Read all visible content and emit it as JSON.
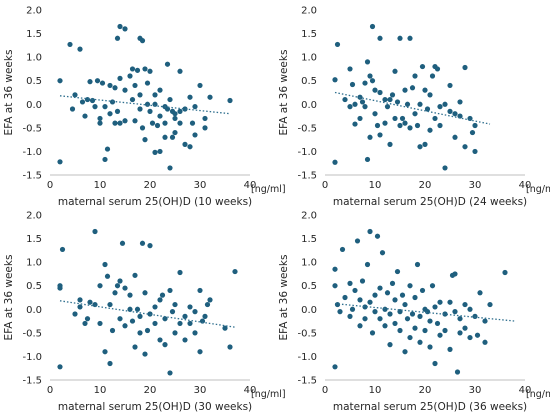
{
  "colors": {
    "point": "#1f5f7e",
    "trend": "#2f6f8e",
    "axis": "#bfbfbf",
    "text": "#262626"
  },
  "chart_data": [
    {
      "type": "scatter",
      "title": "",
      "xlabel": "maternal serum 25(OH)D (10 weeks)",
      "ylabel": "EFA at 36 weeks",
      "x_unit": "[ng/ml]",
      "xlim": [
        0,
        40
      ],
      "ylim": [
        -1.5,
        2.0
      ],
      "xticks": [
        0,
        10,
        20,
        30,
        40
      ],
      "yticks": [
        -1.5,
        -1.0,
        -0.5,
        0.0,
        0.5,
        1.0,
        1.5,
        2.0
      ],
      "xtick_labels": [
        "0",
        "10",
        "20",
        "30",
        "40"
      ],
      "ytick_labels": [
        "-1.5",
        "-1.0",
        "-0.5",
        "0.0",
        "0.5",
        "1.0",
        "1.5",
        "2.0"
      ],
      "grid": false,
      "trendline": {
        "style": "dotted",
        "x": [
          2,
          36
        ],
        "y": [
          0.18,
          -0.2
        ]
      },
      "points": [
        [
          2,
          0.5
        ],
        [
          2,
          -1.22
        ],
        [
          4,
          1.27
        ],
        [
          4.5,
          -0.1
        ],
        [
          5,
          0.2
        ],
        [
          6,
          1.17
        ],
        [
          6.5,
          0.05
        ],
        [
          7,
          -0.25
        ],
        [
          7.5,
          0.1
        ],
        [
          8,
          0.48
        ],
        [
          8.5,
          0.08
        ],
        [
          9,
          -0.05
        ],
        [
          9.5,
          0.5
        ],
        [
          10,
          -0.3
        ],
        [
          10,
          -0.4
        ],
        [
          10.5,
          0.45
        ],
        [
          11,
          -0.05
        ],
        [
          11,
          -1.17
        ],
        [
          11.5,
          -0.95
        ],
        [
          12,
          0.4
        ],
        [
          12,
          -0.2
        ],
        [
          12.5,
          0.05
        ],
        [
          13,
          0.35
        ],
        [
          13,
          -0.4
        ],
        [
          13.5,
          1.4
        ],
        [
          13.5,
          -0.15
        ],
        [
          14,
          1.65
        ],
        [
          14,
          0.55
        ],
        [
          14,
          -0.4
        ],
        [
          15,
          0.3
        ],
        [
          15,
          -0.35
        ],
        [
          15,
          1.6
        ],
        [
          16,
          0.6
        ],
        [
          16.5,
          0.75
        ],
        [
          16.5,
          0.1
        ],
        [
          17,
          0.4
        ],
        [
          17,
          -0.35
        ],
        [
          17.5,
          0.72
        ],
        [
          18,
          1.4
        ],
        [
          18,
          0.2
        ],
        [
          18,
          -0.1
        ],
        [
          18.5,
          1.35
        ],
        [
          18.5,
          -0.5
        ],
        [
          19,
          0.75
        ],
        [
          19,
          -0.75
        ],
        [
          19.5,
          0.45
        ],
        [
          19.5,
          0.0
        ],
        [
          20,
          -0.15
        ],
        [
          20,
          0.7
        ],
        [
          20.5,
          -0.4
        ],
        [
          21,
          0.2
        ],
        [
          21,
          -1.02
        ],
        [
          21,
          0.0
        ],
        [
          21.5,
          -0.45
        ],
        [
          22,
          -0.25
        ],
        [
          22,
          0.3
        ],
        [
          22,
          -1.0
        ],
        [
          23,
          -0.05
        ],
        [
          23,
          -0.4
        ],
        [
          23,
          -0.7
        ],
        [
          23.5,
          0.85
        ],
        [
          23.5,
          -0.1
        ],
        [
          24,
          -1.35
        ],
        [
          24,
          0.1
        ],
        [
          24.5,
          -0.15
        ],
        [
          24.5,
          -0.7
        ],
        [
          25,
          -0.3
        ],
        [
          25,
          -0.6
        ],
        [
          25,
          -0.2
        ],
        [
          26,
          0.7
        ],
        [
          26,
          -0.15
        ],
        [
          26,
          -0.4
        ],
        [
          27,
          -0.85
        ],
        [
          27,
          -0.1
        ],
        [
          28,
          0.15
        ],
        [
          28,
          -0.9
        ],
        [
          28.5,
          -0.4
        ],
        [
          29,
          -0.05
        ],
        [
          29,
          -0.65
        ],
        [
          30,
          0.4
        ],
        [
          31,
          -0.5
        ],
        [
          31,
          -0.3
        ],
        [
          32,
          0.15
        ],
        [
          36,
          0.08
        ]
      ]
    },
    {
      "type": "scatter",
      "title": "",
      "xlabel": "maternal serum 25(OH)D (24 weeks)",
      "ylabel": "EFA at 36 weeks",
      "x_unit": "[ng/ml]",
      "xlim": [
        0,
        40
      ],
      "ylim": [
        -1.5,
        2.0
      ],
      "xticks": [
        0,
        10,
        20,
        30,
        40
      ],
      "yticks": [
        -1.5,
        -1.0,
        -0.5,
        0.0,
        0.5,
        1.0,
        1.5,
        2.0
      ],
      "xtick_labels": [
        "0",
        "10",
        "20",
        "30",
        "40"
      ],
      "ytick_labels": [
        "-1.5",
        "-1.0",
        "-0.5",
        "0.0",
        "0.5",
        "1.0",
        "1.5",
        "2.0"
      ],
      "grid": false,
      "trendline": {
        "style": "dotted",
        "x": [
          2,
          33
        ],
        "y": [
          0.25,
          -0.42
        ]
      },
      "points": [
        [
          2,
          0.52
        ],
        [
          2,
          -1.23
        ],
        [
          2.5,
          1.27
        ],
        [
          4,
          0.1
        ],
        [
          5,
          -0.05
        ],
        [
          5,
          0.75
        ],
        [
          5.5,
          0.42
        ],
        [
          6,
          -0.42
        ],
        [
          6,
          0.0
        ],
        [
          7,
          -0.3
        ],
        [
          7,
          0.15
        ],
        [
          7.5,
          0.05
        ],
        [
          8,
          -0.05
        ],
        [
          8,
          0.45
        ],
        [
          8.5,
          0.9
        ],
        [
          8.5,
          -1.17
        ],
        [
          9,
          0.6
        ],
        [
          9,
          -0.7
        ],
        [
          9.5,
          1.65
        ],
        [
          9.5,
          0.5
        ],
        [
          10,
          0.3
        ],
        [
          10,
          -0.2
        ],
        [
          10.5,
          -0.45
        ],
        [
          11,
          0.25
        ],
        [
          11,
          -0.65
        ],
        [
          11,
          1.4
        ],
        [
          12,
          0.1
        ],
        [
          12,
          -0.4
        ],
        [
          12.5,
          -0.05
        ],
        [
          13,
          0.1
        ],
        [
          13,
          -0.85
        ],
        [
          13.5,
          0.2
        ],
        [
          14,
          0.7
        ],
        [
          14,
          -0.3
        ],
        [
          14.5,
          0.05
        ],
        [
          15,
          1.4
        ],
        [
          15,
          -0.45
        ],
        [
          15.5,
          -0.3
        ],
        [
          16,
          0.3
        ],
        [
          16,
          -0.4
        ],
        [
          16.5,
          0.0
        ],
        [
          17,
          1.4
        ],
        [
          17,
          -0.5
        ],
        [
          17.5,
          0.35
        ],
        [
          18,
          0.6
        ],
        [
          18,
          -0.2
        ],
        [
          18.5,
          -0.45
        ],
        [
          19,
          0.0
        ],
        [
          19,
          -0.9
        ],
        [
          19.5,
          0.8
        ],
        [
          20,
          0.3
        ],
        [
          20,
          -0.85
        ],
        [
          20.5,
          -0.1
        ],
        [
          21,
          0.2
        ],
        [
          21,
          -0.55
        ],
        [
          21.5,
          0.6
        ],
        [
          22,
          0.8
        ],
        [
          22,
          -0.3
        ],
        [
          22.5,
          0.75
        ],
        [
          23,
          -0.05
        ],
        [
          23,
          -0.45
        ],
        [
          24,
          0.0
        ],
        [
          24,
          -1.35
        ],
        [
          25,
          -0.15
        ],
        [
          25,
          0.4
        ],
        [
          26,
          -0.7
        ],
        [
          26,
          -0.2
        ],
        [
          27,
          0.05
        ],
        [
          27,
          -0.25
        ],
        [
          28,
          -0.9
        ],
        [
          28,
          0.78
        ],
        [
          29,
          -0.3
        ],
        [
          29.5,
          -0.6
        ],
        [
          30,
          -0.45
        ],
        [
          30,
          -1.0
        ]
      ]
    },
    {
      "type": "scatter",
      "title": "",
      "xlabel": "maternal serum 25(OH)D (30 weeks)",
      "ylabel": "EFA at 36 weeks",
      "x_unit": "[ng/ml]",
      "xlim": [
        0,
        40
      ],
      "ylim": [
        -1.5,
        2.0
      ],
      "xticks": [
        0,
        10,
        20,
        30,
        40
      ],
      "yticks": [
        -1.5,
        -1.0,
        -0.5,
        0.0,
        0.5,
        1.0,
        1.5,
        2.0
      ],
      "xtick_labels": [
        "0",
        "10",
        "20",
        "30",
        "40"
      ],
      "ytick_labels": [
        "-1.5",
        "-1.0",
        "-0.5",
        "0.0",
        "0.5",
        "1.0",
        "1.5",
        "2.0"
      ],
      "grid": false,
      "trendline": {
        "style": "dotted",
        "x": [
          2,
          37
        ],
        "y": [
          0.18,
          -0.38
        ]
      },
      "points": [
        [
          2,
          0.5
        ],
        [
          2,
          0.45
        ],
        [
          2,
          -1.22
        ],
        [
          2.5,
          1.27
        ],
        [
          5,
          -0.1
        ],
        [
          6,
          0.2
        ],
        [
          6,
          0.05
        ],
        [
          7,
          -0.3
        ],
        [
          7.5,
          -0.2
        ],
        [
          8,
          0.15
        ],
        [
          9,
          1.65
        ],
        [
          9,
          0.1
        ],
        [
          10,
          0.5
        ],
        [
          10,
          -0.3
        ],
        [
          11,
          0.95
        ],
        [
          11,
          -0.9
        ],
        [
          11.5,
          0.7
        ],
        [
          12,
          0.1
        ],
        [
          12,
          -1.15
        ],
        [
          12.5,
          -0.45
        ],
        [
          13,
          0.35
        ],
        [
          13.5,
          0.5
        ],
        [
          14,
          0.6
        ],
        [
          14,
          -0.2
        ],
        [
          14.5,
          1.4
        ],
        [
          15,
          -0.35
        ],
        [
          15,
          0.45
        ],
        [
          16,
          0.3
        ],
        [
          16,
          0.0
        ],
        [
          16.5,
          -0.25
        ],
        [
          17,
          -0.8
        ],
        [
          17,
          0.72
        ],
        [
          17.5,
          0.0
        ],
        [
          18,
          -0.15
        ],
        [
          18,
          -0.5
        ],
        [
          18.5,
          1.4
        ],
        [
          19,
          0.35
        ],
        [
          19,
          -0.95
        ],
        [
          19.5,
          -0.45
        ],
        [
          20,
          1.35
        ],
        [
          20,
          -0.1
        ],
        [
          21,
          0.05
        ],
        [
          21,
          -0.3
        ],
        [
          22,
          0.2
        ],
        [
          22,
          -0.65
        ],
        [
          22.5,
          0.3
        ],
        [
          23,
          -0.2
        ],
        [
          23,
          -0.75
        ],
        [
          24,
          0.4
        ],
        [
          24,
          -1.35
        ],
        [
          24.5,
          -0.05
        ],
        [
          25,
          0.1
        ],
        [
          25,
          -0.5
        ],
        [
          26,
          0.78
        ],
        [
          26,
          -0.3
        ],
        [
          27,
          -0.15
        ],
        [
          27,
          -0.65
        ],
        [
          28,
          0.05
        ],
        [
          28,
          -0.3
        ],
        [
          29,
          -0.5
        ],
        [
          29,
          -0.05
        ],
        [
          30,
          0.4
        ],
        [
          30,
          -0.9
        ],
        [
          30.5,
          -0.25
        ],
        [
          31,
          -0.15
        ],
        [
          31.5,
          0.1
        ],
        [
          32,
          0.2
        ],
        [
          35,
          -0.4
        ],
        [
          36,
          -0.8
        ],
        [
          37,
          0.8
        ]
      ]
    },
    {
      "type": "scatter",
      "title": "",
      "xlabel": "maternal serum 25(OH)D (36 weeks)",
      "ylabel": "EFA at 36 weeks",
      "x_unit": "[ng/ml]",
      "xlim": [
        0,
        40
      ],
      "ylim": [
        -1.5,
        2.0
      ],
      "xticks": [
        0,
        10,
        20,
        30,
        40
      ],
      "yticks": [
        -1.5,
        -1.0,
        -0.5,
        0.0,
        0.5,
        1.0,
        1.5,
        2.0
      ],
      "xtick_labels": [
        "0",
        "10",
        "20",
        "30",
        "40"
      ],
      "ytick_labels": [
        "-1.5",
        "-1.0",
        "-0.5",
        "0.0",
        "0.5",
        "1.0",
        "1.5",
        "2.0"
      ],
      "grid": false,
      "trendline": {
        "style": "dotted",
        "x": [
          2,
          38
        ],
        "y": [
          0.12,
          -0.25
        ]
      },
      "points": [
        [
          2,
          0.85
        ],
        [
          2,
          0.5
        ],
        [
          2,
          -1.22
        ],
        [
          2.5,
          0.1
        ],
        [
          3,
          -0.05
        ],
        [
          3.5,
          1.27
        ],
        [
          4,
          0.25
        ],
        [
          5,
          -0.15
        ],
        [
          5,
          0.55
        ],
        [
          5.5,
          0.0
        ],
        [
          6,
          0.4
        ],
        [
          6.5,
          1.45
        ],
        [
          7,
          0.2
        ],
        [
          7,
          -0.35
        ],
        [
          7.5,
          0.6
        ],
        [
          8,
          0.05
        ],
        [
          8,
          -0.2
        ],
        [
          8.5,
          0.95
        ],
        [
          9,
          1.65
        ],
        [
          9,
          0.15
        ],
        [
          9.5,
          -0.5
        ],
        [
          10,
          0.3
        ],
        [
          10,
          -0.05
        ],
        [
          10.5,
          1.55
        ],
        [
          11,
          0.45
        ],
        [
          11,
          -0.2
        ],
        [
          11.5,
          1.2
        ],
        [
          12,
          0.0
        ],
        [
          12,
          -0.35
        ],
        [
          12.5,
          0.35
        ],
        [
          13,
          -0.1
        ],
        [
          13,
          -0.75
        ],
        [
          13.5,
          0.55
        ],
        [
          14,
          0.2
        ],
        [
          14,
          -0.3
        ],
        [
          14.5,
          0.8
        ],
        [
          15,
          -0.05
        ],
        [
          15,
          -0.45
        ],
        [
          15.5,
          0.3
        ],
        [
          16,
          0.1
        ],
        [
          16,
          -0.9
        ],
        [
          16.5,
          -0.2
        ],
        [
          17,
          0.5
        ],
        [
          17,
          -0.6
        ],
        [
          17.5,
          -0.1
        ],
        [
          18,
          0.25
        ],
        [
          18,
          -0.4
        ],
        [
          18.5,
          0.95
        ],
        [
          19,
          -0.15
        ],
        [
          19,
          -0.7
        ],
        [
          19.5,
          0.4
        ],
        [
          20,
          -0.45
        ],
        [
          20,
          0.0
        ],
        [
          20.5,
          -0.05
        ],
        [
          21,
          -0.25
        ],
        [
          21,
          -0.8
        ],
        [
          21.5,
          0.5
        ],
        [
          22,
          -1.15
        ],
        [
          22,
          0.05
        ],
        [
          22.5,
          -0.3
        ],
        [
          23,
          0.15
        ],
        [
          23,
          -0.55
        ],
        [
          24,
          -0.1
        ],
        [
          24,
          -0.45
        ],
        [
          25,
          0.15
        ],
        [
          25,
          -0.85
        ],
        [
          25.5,
          0.72
        ],
        [
          26,
          0.75
        ],
        [
          26,
          -0.05
        ],
        [
          26.5,
          -1.33
        ],
        [
          27,
          -0.5
        ],
        [
          27,
          -0.2
        ],
        [
          28,
          0.1
        ],
        [
          28,
          -0.4
        ],
        [
          29,
          0.0
        ],
        [
          29,
          -0.6
        ],
        [
          30,
          -0.15
        ],
        [
          30.5,
          -0.55
        ],
        [
          31,
          0.35
        ],
        [
          32,
          -0.7
        ],
        [
          32,
          -0.25
        ],
        [
          33,
          0.1
        ],
        [
          36,
          0.78
        ]
      ]
    }
  ]
}
